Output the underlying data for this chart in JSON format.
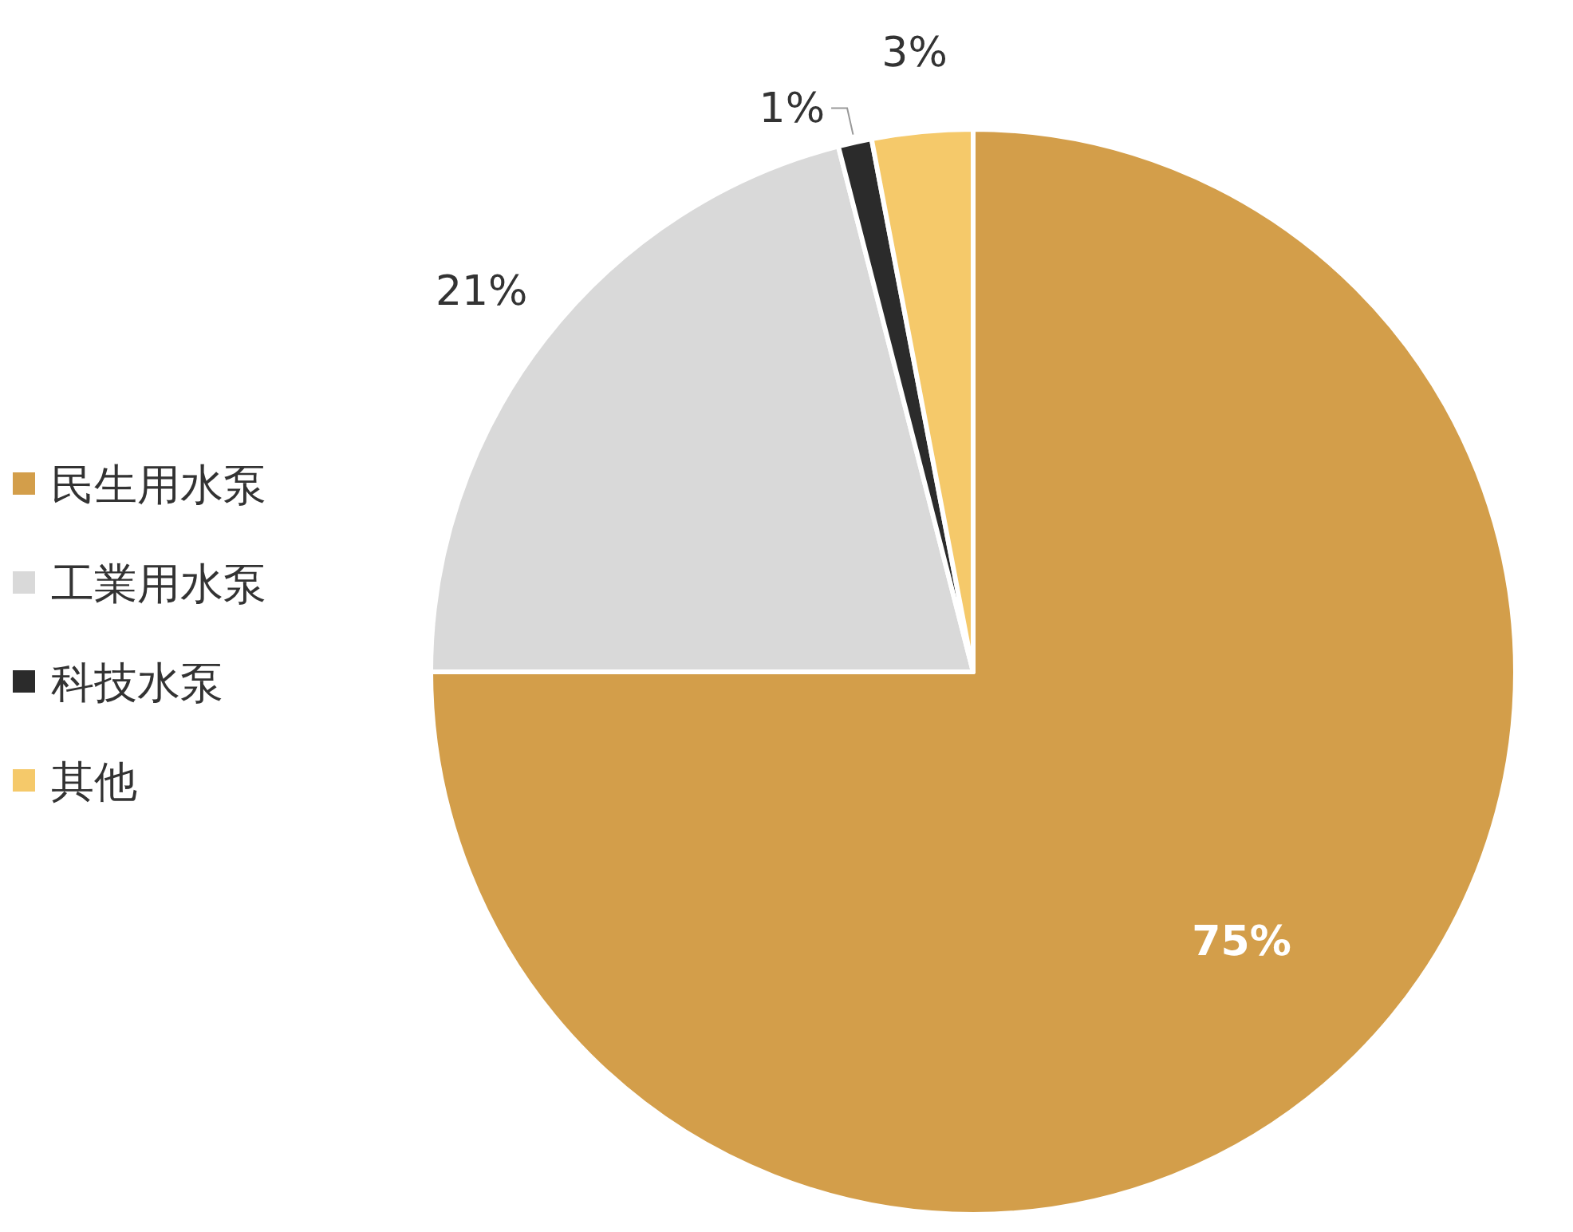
{
  "chart_data": {
    "type": "pie",
    "categories": [
      "民生用水泵",
      "工業用水泵",
      "科技水泵",
      "其他"
    ],
    "values": [
      75,
      21,
      1,
      3
    ],
    "colors": [
      "#d39e4a",
      "#d9d9d9",
      "#2b2b2b",
      "#f5c96a"
    ],
    "value_labels": [
      "75%",
      "21%",
      "1%",
      "3%"
    ],
    "legend": "left"
  }
}
